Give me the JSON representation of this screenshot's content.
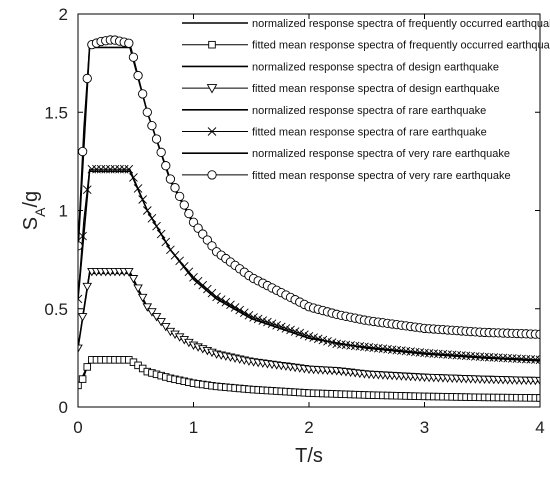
{
  "chart_data": {
    "type": "line",
    "title": "",
    "xlabel": "T/s",
    "ylabel": "S_A/g",
    "ylabel_parts": {
      "main": "S",
      "sub": "A",
      "rest": "/g"
    },
    "xlim": [
      0,
      4
    ],
    "ylim": [
      0,
      2
    ],
    "xticks": [
      "0",
      "1",
      "2",
      "3",
      "4"
    ],
    "yticks": [
      "0",
      "0.5",
      "1",
      "1.5",
      "2"
    ],
    "grid": false,
    "legend_position": "top-right",
    "series": [
      {
        "name": "normalized response spectra of frequently occurred earthquake",
        "style": "line",
        "marker": "none",
        "color": "#000000",
        "x": [
          0,
          0.1,
          0.45,
          0.6,
          0.8,
          1.0,
          1.2,
          1.5,
          2.0,
          2.5,
          3.0,
          3.5,
          4.0
        ],
        "y": [
          0.104,
          0.23,
          0.23,
          0.18,
          0.145,
          0.12,
          0.104,
          0.088,
          0.07,
          0.06,
          0.053,
          0.048,
          0.045
        ]
      },
      {
        "name": "fitted mean response spectra of frequently occurred earthquake",
        "style": "line",
        "marker": "square",
        "color": "#000000",
        "x": [
          0,
          0.05,
          0.1,
          0.45,
          0.6,
          0.8,
          1.0,
          1.2,
          1.5,
          2.0,
          2.5,
          3.0,
          3.5,
          4.0
        ],
        "y": [
          0.11,
          0.15,
          0.24,
          0.24,
          0.18,
          0.146,
          0.121,
          0.105,
          0.089,
          0.071,
          0.061,
          0.054,
          0.049,
          0.046
        ]
      },
      {
        "name": "normalized response spectra of design earthquake",
        "style": "line",
        "marker": "none",
        "color": "#000000",
        "x": [
          0,
          0.1,
          0.45,
          0.6,
          0.8,
          1.0,
          1.2,
          1.5,
          2.0,
          2.5,
          3.0,
          3.5,
          4.0
        ],
        "y": [
          0.3,
          0.68,
          0.68,
          0.5,
          0.38,
          0.31,
          0.265,
          0.23,
          0.19,
          0.165,
          0.15,
          0.14,
          0.13
        ]
      },
      {
        "name": "fitted mean response spectra of design earthquake",
        "style": "line",
        "marker": "triangle-down",
        "color": "#000000",
        "x": [
          0,
          0.05,
          0.1,
          0.45,
          0.6,
          0.8,
          1.0,
          1.2,
          1.5,
          2.0,
          2.25,
          2.5,
          3.0,
          3.5,
          4.0
        ],
        "y": [
          0.3,
          0.5,
          0.69,
          0.69,
          0.51,
          0.385,
          0.315,
          0.27,
          0.232,
          0.193,
          0.185,
          0.168,
          0.152,
          0.142,
          0.135
        ]
      },
      {
        "name": "normalized response spectra of rare earthquake",
        "style": "line",
        "marker": "none",
        "color": "#000000",
        "x": [
          0,
          0.1,
          0.45,
          0.6,
          0.8,
          1.0,
          1.2,
          1.5,
          2.0,
          2.5,
          3.0,
          3.5,
          4.0
        ],
        "y": [
          0.55,
          1.2,
          1.2,
          1.0,
          0.8,
          0.65,
          0.55,
          0.45,
          0.35,
          0.3,
          0.27,
          0.25,
          0.235
        ]
      },
      {
        "name": "fitted mean response spectra of rare earthquake",
        "style": "line",
        "marker": "x",
        "color": "#000000",
        "x": [
          0,
          0.05,
          0.1,
          0.45,
          0.6,
          0.8,
          1.0,
          1.2,
          1.5,
          2.0,
          2.25,
          2.5,
          3.0,
          3.5,
          4.0
        ],
        "y": [
          0.55,
          0.95,
          1.21,
          1.21,
          1.0,
          0.8,
          0.66,
          0.56,
          0.46,
          0.36,
          0.32,
          0.305,
          0.275,
          0.255,
          0.24
        ]
      },
      {
        "name": "normalized response spectra of very rare earthquake",
        "style": "line",
        "marker": "none",
        "color": "#000000",
        "x": [
          0,
          0.1,
          0.45,
          0.6,
          0.8,
          1.0,
          1.2,
          1.5,
          2.0,
          2.5,
          3.0,
          3.5,
          4.0
        ],
        "y": [
          0.8,
          1.83,
          1.83,
          1.5,
          1.15,
          0.93,
          0.78,
          0.65,
          0.5,
          0.43,
          0.39,
          0.37,
          0.36
        ]
      },
      {
        "name": "fitted mean response spectra of very rare earthquake",
        "style": "line",
        "marker": "circle",
        "color": "#000000",
        "x": [
          0,
          0.05,
          0.1,
          0.2,
          0.3,
          0.45,
          0.6,
          0.8,
          1.0,
          1.2,
          1.5,
          2.0,
          2.25,
          2.5,
          3.0,
          3.5,
          4.0
        ],
        "y": [
          0.82,
          1.42,
          1.84,
          1.86,
          1.87,
          1.85,
          1.5,
          1.16,
          0.94,
          0.79,
          0.66,
          0.51,
          0.47,
          0.44,
          0.4,
          0.38,
          0.37
        ]
      }
    ]
  }
}
